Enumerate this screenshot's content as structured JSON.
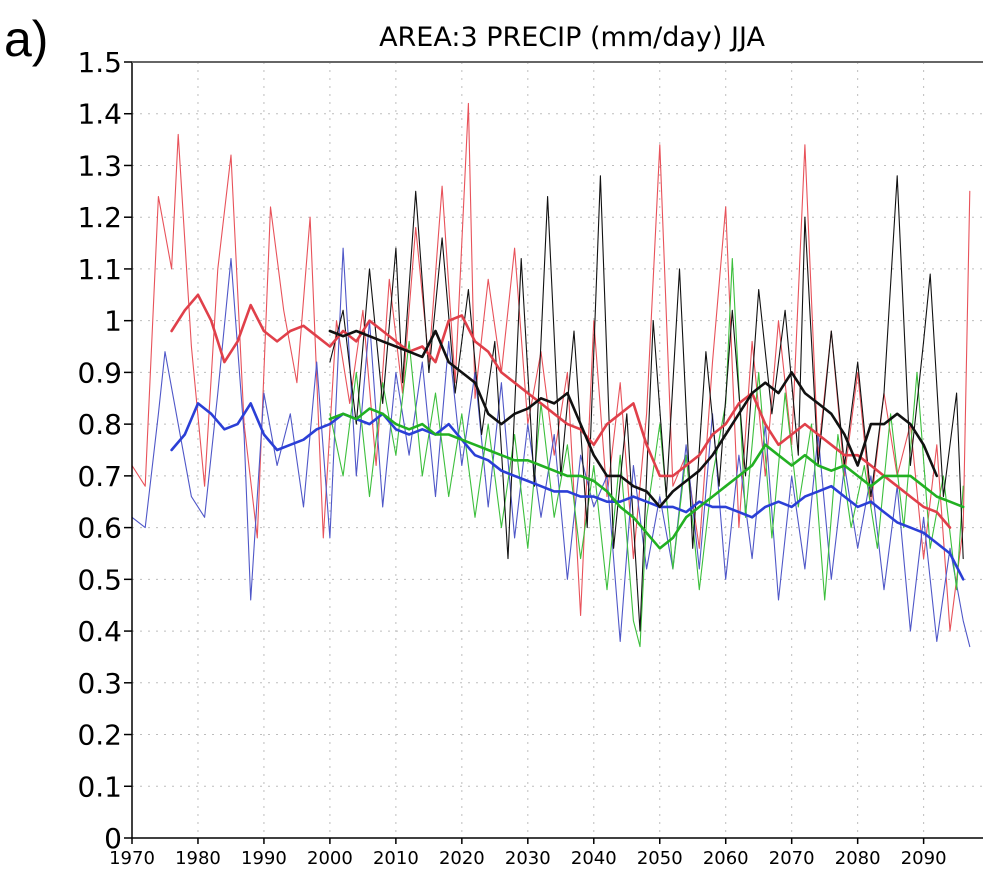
{
  "panel_label": "a)",
  "chart_data": {
    "type": "line",
    "title": "AREA:3 PRECIP (mm/day) JJA",
    "xlabel": "",
    "ylabel": "",
    "xlim": [
      1970,
      2099
    ],
    "ylim": [
      0,
      1.5
    ],
    "x_ticks": [
      1970,
      1980,
      1990,
      2000,
      2010,
      2020,
      2030,
      2040,
      2050,
      2060,
      2070,
      2080,
      2090
    ],
    "y_ticks": [
      {
        "value": 0,
        "label": "0"
      },
      {
        "value": 0.1,
        "label": "0.1"
      },
      {
        "value": 0.2,
        "label": "0.2"
      },
      {
        "value": 0.3,
        "label": "0.3"
      },
      {
        "value": 0.4,
        "label": "0.4"
      },
      {
        "value": 0.5,
        "label": "0.5"
      },
      {
        "value": 0.6,
        "label": "0.6"
      },
      {
        "value": 0.7,
        "label": "0.7"
      },
      {
        "value": 0.8,
        "label": "0.8"
      },
      {
        "value": 0.9,
        "label": "0.9"
      },
      {
        "value": 1.0,
        "label": "1"
      },
      {
        "value": 1.1,
        "label": "1.1"
      },
      {
        "value": 1.2,
        "label": "1.2"
      },
      {
        "value": 1.3,
        "label": "1.3"
      },
      {
        "value": 1.4,
        "label": "1.4"
      },
      {
        "value": 1.5,
        "label": "1.5"
      }
    ],
    "grid": true,
    "legend": "none",
    "series": [
      {
        "color": "#e8525a",
        "style": "thin",
        "x": [
          1970,
          1972,
          1974,
          1976,
          1977,
          1979,
          1981,
          1983,
          1985,
          1987,
          1989,
          1991,
          1993,
          1995,
          1997,
          1999,
          2001,
          2003,
          2005,
          2007,
          2009,
          2011,
          2013,
          2015,
          2017,
          2019,
          2021,
          2022,
          2024,
          2026,
          2028,
          2030,
          2032,
          2034,
          2036,
          2038,
          2040,
          2042,
          2044,
          2046,
          2048,
          2050,
          2052,
          2054,
          2056,
          2058,
          2060,
          2062,
          2064,
          2066,
          2068,
          2070,
          2072,
          2074,
          2076,
          2078,
          2080,
          2082,
          2084,
          2086,
          2088,
          2090,
          2092,
          2094,
          2096,
          2097
        ],
        "y": [
          0.72,
          0.68,
          1.24,
          1.1,
          1.36,
          0.95,
          0.68,
          1.1,
          1.32,
          0.8,
          0.58,
          1.22,
          1.02,
          0.88,
          1.2,
          0.58,
          1.0,
          0.84,
          1.02,
          0.72,
          1.08,
          0.86,
          1.18,
          0.92,
          1.26,
          0.88,
          1.42,
          0.85,
          1.08,
          0.9,
          1.14,
          0.8,
          0.94,
          0.74,
          0.9,
          0.43,
          1.0,
          0.66,
          0.88,
          0.54,
          0.82,
          1.34,
          0.68,
          0.74,
          0.56,
          0.92,
          1.22,
          0.6,
          0.96,
          0.7,
          1.0,
          0.76,
          1.34,
          0.74,
          0.98,
          0.7,
          0.9,
          0.64,
          0.86,
          0.7,
          0.8,
          0.54,
          0.76,
          0.4,
          0.6,
          1.25
        ]
      },
      {
        "color": "#4f57c8",
        "style": "thin",
        "x": [
          1970,
          1972,
          1974,
          1975,
          1977,
          1979,
          1981,
          1983,
          1985,
          1987,
          1988,
          1990,
          1992,
          1994,
          1996,
          1998,
          2000,
          2002,
          2004,
          2006,
          2008,
          2010,
          2012,
          2014,
          2016,
          2018,
          2020,
          2022,
          2024,
          2026,
          2028,
          2030,
          2032,
          2034,
          2036,
          2038,
          2040,
          2042,
          2044,
          2046,
          2048,
          2050,
          2052,
          2054,
          2056,
          2058,
          2060,
          2062,
          2064,
          2066,
          2068,
          2070,
          2072,
          2074,
          2076,
          2078,
          2080,
          2082,
          2084,
          2086,
          2088,
          2090,
          2092,
          2094,
          2096,
          2097
        ],
        "y": [
          0.62,
          0.6,
          0.82,
          0.94,
          0.8,
          0.66,
          0.62,
          0.86,
          1.12,
          0.78,
          0.46,
          0.86,
          0.72,
          0.82,
          0.64,
          0.92,
          0.58,
          1.14,
          0.7,
          1.0,
          0.64,
          0.9,
          0.74,
          0.92,
          0.66,
          0.96,
          0.72,
          0.9,
          0.64,
          0.88,
          0.58,
          0.8,
          0.62,
          0.78,
          0.5,
          0.74,
          0.64,
          0.7,
          0.38,
          0.72,
          0.52,
          0.66,
          0.52,
          0.76,
          0.52,
          0.82,
          0.5,
          0.74,
          0.54,
          0.8,
          0.46,
          0.7,
          0.52,
          0.78,
          0.5,
          0.72,
          0.56,
          0.7,
          0.48,
          0.68,
          0.4,
          0.62,
          0.38,
          0.56,
          0.42,
          0.37
        ]
      },
      {
        "color": "#3cbf3c",
        "style": "thin",
        "x": [
          2000,
          2002,
          2004,
          2006,
          2008,
          2010,
          2012,
          2014,
          2016,
          2018,
          2020,
          2022,
          2024,
          2026,
          2028,
          2030,
          2032,
          2034,
          2036,
          2038,
          2040,
          2042,
          2044,
          2046,
          2047,
          2048,
          2050,
          2052,
          2054,
          2056,
          2058,
          2060,
          2061,
          2063,
          2065,
          2067,
          2069,
          2071,
          2073,
          2075,
          2077,
          2079,
          2081,
          2083,
          2085,
          2087,
          2089,
          2091,
          2093,
          2095,
          2096
        ],
        "y": [
          0.82,
          0.7,
          0.9,
          0.66,
          0.88,
          0.74,
          0.96,
          0.7,
          0.86,
          0.66,
          0.82,
          0.62,
          0.8,
          0.6,
          0.78,
          0.56,
          0.84,
          0.62,
          0.76,
          0.54,
          0.72,
          0.48,
          0.74,
          0.42,
          0.37,
          0.62,
          0.8,
          0.52,
          0.74,
          0.48,
          0.7,
          0.84,
          1.12,
          0.62,
          0.9,
          0.58,
          0.86,
          0.64,
          0.8,
          0.46,
          0.78,
          0.6,
          0.72,
          0.56,
          0.82,
          0.6,
          0.9,
          0.56,
          0.7,
          0.48,
          0.68
        ]
      },
      {
        "color": "#111111",
        "style": "thin",
        "x": [
          2000,
          2002,
          2004,
          2006,
          2008,
          2010,
          2011,
          2013,
          2015,
          2017,
          2019,
          2021,
          2023,
          2025,
          2027,
          2029,
          2031,
          2033,
          2035,
          2037,
          2039,
          2041,
          2043,
          2045,
          2047,
          2049,
          2051,
          2053,
          2055,
          2057,
          2059,
          2061,
          2063,
          2065,
          2067,
          2069,
          2071,
          2072,
          2074,
          2076,
          2078,
          2080,
          2082,
          2084,
          2086,
          2088,
          2090,
          2091,
          2093,
          2095,
          2096
        ],
        "y": [
          0.92,
          1.02,
          0.8,
          1.1,
          0.84,
          1.14,
          0.88,
          1.25,
          0.9,
          1.16,
          0.86,
          1.06,
          0.78,
          0.96,
          0.54,
          1.12,
          0.68,
          1.24,
          0.7,
          0.98,
          0.6,
          1.28,
          0.56,
          0.82,
          0.4,
          1.0,
          0.66,
          1.1,
          0.56,
          0.94,
          0.68,
          1.02,
          0.7,
          1.06,
          0.82,
          1.02,
          0.74,
          1.2,
          0.72,
          0.98,
          0.72,
          0.92,
          0.66,
          0.86,
          1.28,
          0.72,
          0.96,
          1.09,
          0.66,
          0.86,
          0.54
        ]
      },
      {
        "color": "#e0404a",
        "style": "thick",
        "x": [
          1976,
          1978,
          1980,
          1982,
          1984,
          1986,
          1988,
          1990,
          1992,
          1994,
          1996,
          1998,
          2000,
          2002,
          2004,
          2006,
          2008,
          2010,
          2012,
          2014,
          2016,
          2018,
          2020,
          2022,
          2024,
          2026,
          2028,
          2030,
          2032,
          2034,
          2036,
          2038,
          2040,
          2042,
          2044,
          2046,
          2048,
          2050,
          2052,
          2054,
          2056,
          2058,
          2060,
          2062,
          2064,
          2066,
          2068,
          2070,
          2072,
          2074,
          2076,
          2078,
          2080,
          2082,
          2084,
          2086,
          2088,
          2090,
          2092,
          2094
        ],
        "y": [
          0.98,
          1.02,
          1.05,
          1.0,
          0.92,
          0.96,
          1.03,
          0.98,
          0.96,
          0.98,
          0.99,
          0.97,
          0.95,
          0.98,
          0.96,
          1.0,
          0.98,
          0.96,
          0.94,
          0.95,
          0.92,
          1.0,
          1.01,
          0.96,
          0.94,
          0.9,
          0.88,
          0.86,
          0.84,
          0.82,
          0.8,
          0.79,
          0.76,
          0.8,
          0.82,
          0.84,
          0.76,
          0.7,
          0.7,
          0.72,
          0.74,
          0.78,
          0.8,
          0.84,
          0.86,
          0.8,
          0.76,
          0.78,
          0.8,
          0.78,
          0.76,
          0.74,
          0.74,
          0.72,
          0.7,
          0.68,
          0.66,
          0.64,
          0.63,
          0.6
        ]
      },
      {
        "color": "#2b3fd6",
        "style": "thick",
        "x": [
          1976,
          1978,
          1980,
          1982,
          1984,
          1986,
          1988,
          1990,
          1992,
          1994,
          1996,
          1998,
          2000,
          2002,
          2004,
          2006,
          2008,
          2010,
          2012,
          2014,
          2016,
          2018,
          2020,
          2022,
          2024,
          2026,
          2028,
          2030,
          2032,
          2034,
          2036,
          2038,
          2040,
          2042,
          2044,
          2046,
          2048,
          2050,
          2052,
          2054,
          2056,
          2058,
          2060,
          2062,
          2064,
          2066,
          2068,
          2070,
          2072,
          2074,
          2076,
          2078,
          2080,
          2082,
          2084,
          2086,
          2088,
          2090,
          2092,
          2094,
          2096
        ],
        "y": [
          0.75,
          0.78,
          0.84,
          0.82,
          0.79,
          0.8,
          0.84,
          0.78,
          0.75,
          0.76,
          0.77,
          0.79,
          0.8,
          0.82,
          0.81,
          0.8,
          0.82,
          0.79,
          0.78,
          0.79,
          0.78,
          0.8,
          0.77,
          0.74,
          0.73,
          0.71,
          0.7,
          0.69,
          0.68,
          0.67,
          0.67,
          0.66,
          0.66,
          0.65,
          0.65,
          0.66,
          0.65,
          0.64,
          0.64,
          0.63,
          0.65,
          0.64,
          0.64,
          0.63,
          0.62,
          0.64,
          0.65,
          0.64,
          0.66,
          0.67,
          0.68,
          0.66,
          0.64,
          0.65,
          0.63,
          0.61,
          0.6,
          0.59,
          0.57,
          0.55,
          0.5
        ]
      },
      {
        "color": "#22b022",
        "style": "thick",
        "x": [
          2000,
          2002,
          2004,
          2006,
          2008,
          2010,
          2012,
          2014,
          2016,
          2018,
          2020,
          2022,
          2024,
          2026,
          2028,
          2030,
          2032,
          2034,
          2036,
          2038,
          2040,
          2042,
          2044,
          2046,
          2048,
          2050,
          2052,
          2054,
          2056,
          2058,
          2060,
          2062,
          2064,
          2066,
          2068,
          2070,
          2072,
          2074,
          2076,
          2078,
          2080,
          2082,
          2084,
          2086,
          2088,
          2090,
          2092,
          2094,
          2096
        ],
        "y": [
          0.81,
          0.82,
          0.81,
          0.83,
          0.82,
          0.8,
          0.79,
          0.8,
          0.78,
          0.78,
          0.77,
          0.76,
          0.75,
          0.74,
          0.73,
          0.73,
          0.72,
          0.71,
          0.7,
          0.7,
          0.69,
          0.67,
          0.64,
          0.62,
          0.59,
          0.56,
          0.58,
          0.62,
          0.64,
          0.66,
          0.68,
          0.7,
          0.72,
          0.76,
          0.74,
          0.72,
          0.74,
          0.72,
          0.71,
          0.72,
          0.7,
          0.68,
          0.7,
          0.7,
          0.7,
          0.68,
          0.66,
          0.65,
          0.64
        ]
      },
      {
        "color": "#111111",
        "style": "thick",
        "x": [
          2000,
          2002,
          2004,
          2006,
          2008,
          2010,
          2012,
          2014,
          2016,
          2018,
          2020,
          2022,
          2024,
          2026,
          2028,
          2030,
          2032,
          2034,
          2036,
          2038,
          2040,
          2042,
          2044,
          2046,
          2048,
          2050,
          2052,
          2054,
          2056,
          2058,
          2060,
          2062,
          2064,
          2066,
          2068,
          2070,
          2072,
          2074,
          2076,
          2078,
          2080,
          2082,
          2084,
          2086,
          2088,
          2090,
          2092
        ],
        "y": [
          0.98,
          0.97,
          0.98,
          0.97,
          0.96,
          0.95,
          0.94,
          0.93,
          0.98,
          0.92,
          0.9,
          0.88,
          0.82,
          0.8,
          0.82,
          0.83,
          0.85,
          0.84,
          0.86,
          0.8,
          0.74,
          0.7,
          0.7,
          0.68,
          0.67,
          0.64,
          0.67,
          0.69,
          0.71,
          0.74,
          0.78,
          0.82,
          0.86,
          0.88,
          0.86,
          0.9,
          0.86,
          0.84,
          0.82,
          0.78,
          0.72,
          0.8,
          0.8,
          0.82,
          0.8,
          0.76,
          0.7
        ]
      }
    ]
  }
}
